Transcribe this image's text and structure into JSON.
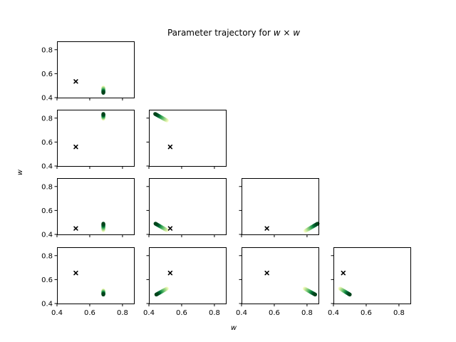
{
  "chart_data": {
    "type": "scatter",
    "title_prefix": "Parameter trajectory for ",
    "title_math": "w × w",
    "xlabel": "w",
    "ylabel": "w",
    "xlim": [
      0.4,
      0.87
    ],
    "ylim": [
      0.4,
      0.87
    ],
    "xticks": [
      0.4,
      0.6,
      0.8
    ],
    "yticks": [
      0.4,
      0.6,
      0.8
    ],
    "xtick_labels": [
      "0.4",
      "0.6",
      "0.8"
    ],
    "ytick_labels": [
      "0.4",
      "0.6",
      "0.8"
    ],
    "colormap": [
      "#ffffcc",
      "#c2e699",
      "#78c679",
      "#31a354",
      "#006837",
      "#00441b"
    ],
    "marker_color": "#000000",
    "panels": [
      {
        "row": 0,
        "col": 0,
        "start": [
          0.683,
          0.485
        ],
        "end": [
          0.683,
          0.44
        ],
        "target": [
          0.515,
          0.535
        ]
      },
      {
        "row": 1,
        "col": 0,
        "start": [
          0.683,
          0.795
        ],
        "end": [
          0.683,
          0.835
        ],
        "target": [
          0.515,
          0.56
        ]
      },
      {
        "row": 1,
        "col": 1,
        "start": [
          0.51,
          0.78
        ],
        "end": [
          0.438,
          0.835
        ],
        "target": [
          0.53,
          0.56
        ]
      },
      {
        "row": 2,
        "col": 0,
        "start": [
          0.683,
          0.435
        ],
        "end": [
          0.683,
          0.49
        ],
        "target": [
          0.515,
          0.45
        ]
      },
      {
        "row": 2,
        "col": 1,
        "start": [
          0.51,
          0.435
        ],
        "end": [
          0.44,
          0.49
        ],
        "target": [
          0.53,
          0.45
        ]
      },
      {
        "row": 2,
        "col": 2,
        "start": [
          0.79,
          0.43
        ],
        "end": [
          0.865,
          0.49
        ],
        "target": [
          0.555,
          0.45
        ]
      },
      {
        "row": 3,
        "col": 0,
        "start": [
          0.683,
          0.51
        ],
        "end": [
          0.683,
          0.475
        ],
        "target": [
          0.515,
          0.655
        ]
      },
      {
        "row": 3,
        "col": 1,
        "start": [
          0.51,
          0.525
        ],
        "end": [
          0.445,
          0.475
        ],
        "target": [
          0.53,
          0.655
        ]
      },
      {
        "row": 3,
        "col": 2,
        "start": [
          0.785,
          0.525
        ],
        "end": [
          0.85,
          0.475
        ],
        "target": [
          0.555,
          0.655
        ]
      },
      {
        "row": 3,
        "col": 3,
        "start": [
          0.44,
          0.525
        ],
        "end": [
          0.5,
          0.475
        ],
        "target": [
          0.46,
          0.655
        ]
      }
    ]
  }
}
